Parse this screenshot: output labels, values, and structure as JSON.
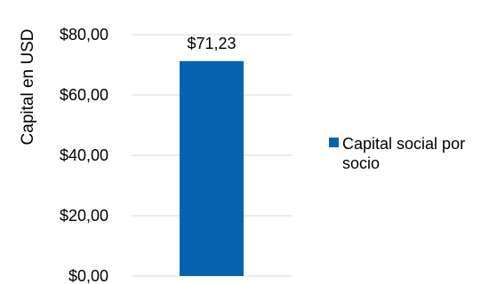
{
  "chart_data": {
    "type": "bar",
    "title": "",
    "categories": [
      ""
    ],
    "series": [
      {
        "name": "Capital social por socio",
        "values": [
          71.23
        ],
        "color": "#0563B0"
      }
    ],
    "value_labels": [
      "$71,23"
    ],
    "ylabel": "Capital en  USD",
    "xlabel": "",
    "ylim": [
      0,
      80
    ],
    "y_ticks": [
      0,
      20,
      40,
      60,
      80
    ],
    "y_tick_labels": [
      "$0,00",
      "$20,00",
      "$40,00",
      "$60,00",
      "$80,00"
    ],
    "grid": true,
    "gridline_color": "#D9D9D9",
    "legend_position": "right",
    "legend_lines": [
      "Capital social por",
      "socio"
    ]
  }
}
